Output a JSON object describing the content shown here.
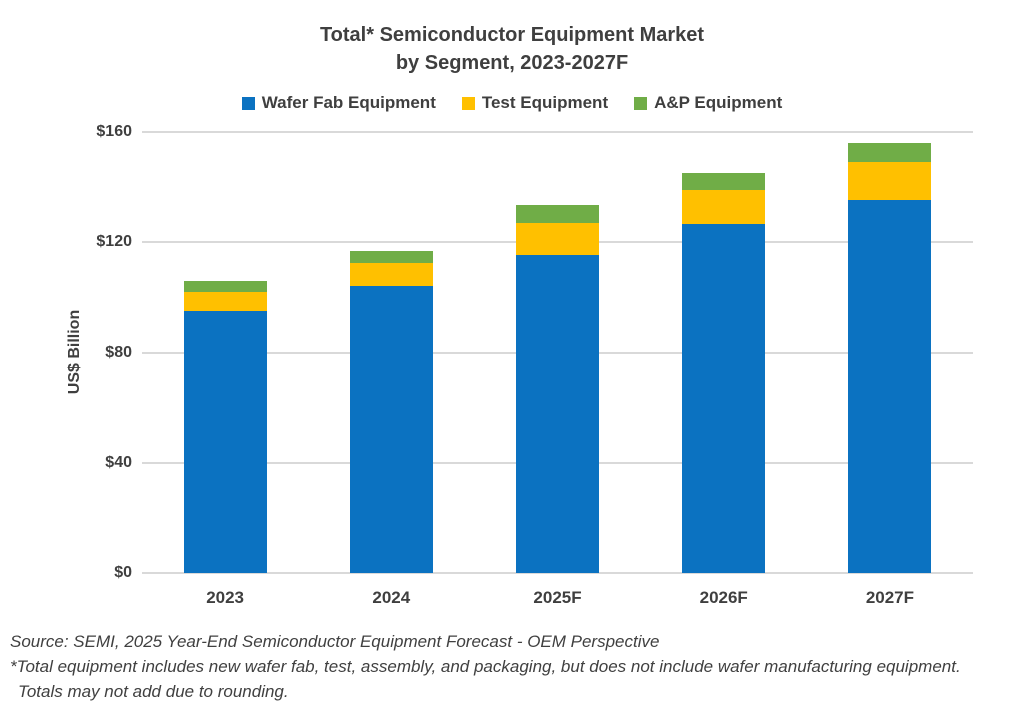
{
  "title": {
    "line1": "Total* Semiconductor Equipment Market",
    "line2": "by Segment, 2023-2027F"
  },
  "legend": [
    {
      "label": "Wafer Fab Equipment",
      "color": "#0b72c1"
    },
    {
      "label": "Test Equipment",
      "color": "#ffc000"
    },
    {
      "label": "A&P Equipment",
      "color": "#70ad47"
    }
  ],
  "chart_data": {
    "type": "bar",
    "stacked": true,
    "title": "Total* Semiconductor Equipment Market by Segment, 2023-2027F",
    "categories": [
      "2023",
      "2024",
      "2025F",
      "2026F",
      "2027F"
    ],
    "series": [
      {
        "name": "Wafer Fab Equipment",
        "color": "#0b72c1",
        "values": [
          95,
          104,
          115.5,
          126.5,
          135.5
        ]
      },
      {
        "name": "Test Equipment",
        "color": "#ffc000",
        "values": [
          7,
          8.5,
          11.5,
          12.5,
          13.5
        ]
      },
      {
        "name": "A&P Equipment",
        "color": "#70ad47",
        "values": [
          4,
          4.5,
          6.5,
          6,
          7
        ]
      }
    ],
    "xlabel": "",
    "ylabel": "US$ Billion",
    "ylim": [
      0,
      160
    ],
    "yticks": [
      {
        "value": 0,
        "label": "$0"
      },
      {
        "value": 40,
        "label": "$40"
      },
      {
        "value": 80,
        "label": "$80"
      },
      {
        "value": 120,
        "label": "$120"
      },
      {
        "value": 160,
        "label": "$160"
      }
    ],
    "grid": true,
    "legend_position": "top"
  },
  "footer": {
    "lines": [
      "Source: SEMI, 2025 Year-End Semiconductor Equipment Forecast - OEM Perspective",
      "*Total equipment includes new wafer fab, test, assembly, and packaging, but does not include wafer manufacturing equipment.",
      "Totals may not add due to rounding."
    ]
  },
  "colors": {
    "background": "#ffffff",
    "gridline": "#d9d9d9",
    "text": "#3f3f3f",
    "footer_text": "#404040"
  }
}
